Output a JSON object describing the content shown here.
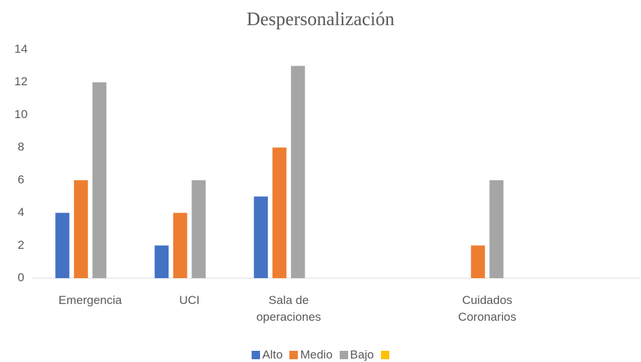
{
  "chart_data": {
    "type": "bar",
    "title": "Despersonalización",
    "categories": [
      "Emergencia",
      "UCI",
      "Sala de operaciones",
      null,
      "Cuidados Coronarios",
      null
    ],
    "series": [
      {
        "name": "Alto",
        "color": "#4472c4",
        "values": [
          4,
          2,
          5,
          null,
          null,
          null
        ]
      },
      {
        "name": "Medio",
        "color": "#ed7d31",
        "values": [
          6,
          4,
          8,
          null,
          2,
          null
        ]
      },
      {
        "name": "Bajo",
        "color": "#a5a5a5",
        "values": [
          12,
          6,
          13,
          null,
          6,
          null
        ]
      },
      {
        "color": "#ffc000",
        "values": [
          null,
          null,
          null,
          null,
          null,
          null
        ]
      }
    ],
    "ylim": [
      0,
      14
    ],
    "yticks": [
      0,
      2,
      4,
      6,
      8,
      10,
      12,
      14
    ],
    "grid": false,
    "legend": "bottom"
  }
}
